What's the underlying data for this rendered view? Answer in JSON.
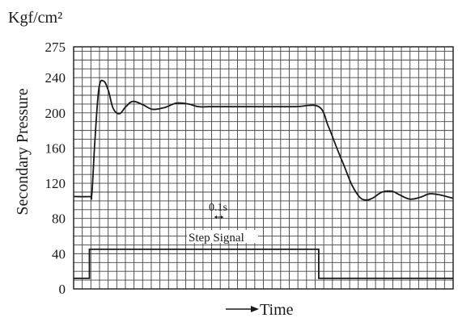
{
  "chart_data": {
    "type": "line",
    "unit_label": "Kgf/cm²",
    "ylabel": "Secondary Pressure",
    "xlabel": "Time",
    "yticks": [
      0,
      40,
      80,
      120,
      160,
      200,
      240,
      275
    ],
    "ylim": [
      0,
      275
    ],
    "xlim": [
      0,
      4.8
    ],
    "grid": true,
    "annotations": {
      "time_scale": "0.1s",
      "step_label": "Step Signal"
    },
    "series": [
      {
        "name": "Secondary Pressure",
        "x": [
          0.0,
          0.2,
          0.23,
          0.27,
          0.32,
          0.38,
          0.44,
          0.5,
          0.58,
          0.66,
          0.75,
          0.88,
          1.0,
          1.15,
          1.3,
          1.45,
          1.58,
          1.7,
          1.8,
          2.0,
          2.4,
          2.8,
          3.1,
          3.22,
          3.32,
          3.42,
          3.52,
          3.62,
          3.7,
          3.78,
          3.9,
          4.02,
          4.12,
          4.25,
          4.38,
          4.5,
          4.62,
          4.8
        ],
        "values": [
          105,
          105,
          108,
          170,
          228,
          236,
          225,
          205,
          199,
          207,
          213,
          209,
          204,
          206,
          211,
          210,
          207,
          207,
          207,
          207,
          207,
          207,
          207,
          185,
          162,
          140,
          118,
          104,
          101,
          103,
          110,
          111,
          107,
          102,
          104,
          108,
          107,
          103
        ]
      },
      {
        "name": "Step Signal",
        "x": [
          0.0,
          0.2,
          0.2,
          3.1,
          3.1,
          4.8
        ],
        "values": [
          12,
          12,
          45,
          45,
          12,
          12
        ]
      }
    ]
  }
}
